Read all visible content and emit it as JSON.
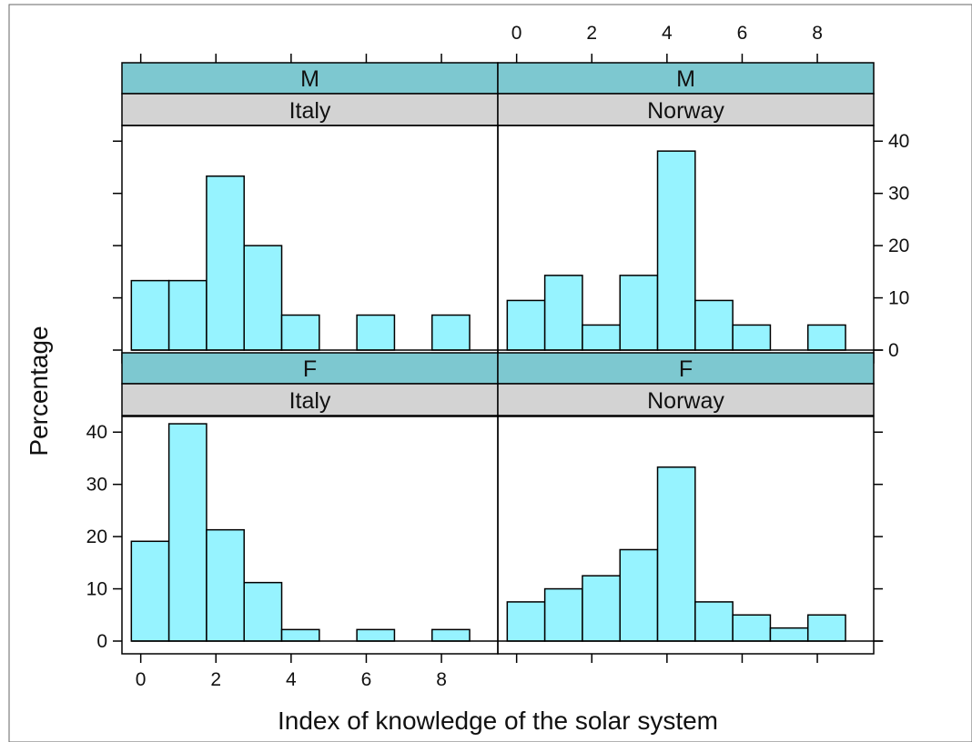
{
  "chart_data": {
    "type": "bar",
    "kind": "histogram-lattice",
    "xlabel": "Index of knowledge of the solar system",
    "ylabel": "Percentage",
    "xlim": [
      -0.5,
      9.5
    ],
    "ylim": [
      0,
      43
    ],
    "xticks": [
      0,
      2,
      4,
      6,
      8
    ],
    "yticks": [
      0,
      10,
      20,
      30,
      40
    ],
    "bin_edges": [
      -0.25,
      0.75,
      1.75,
      2.75,
      3.75,
      4.75,
      5.75,
      6.75,
      7.75,
      8.75
    ],
    "bin_width": 1.0,
    "colors": {
      "bar": "#96F3FF",
      "strip_outer": "#7DC8D0",
      "strip_inner": "#D3D3D3"
    },
    "grid": false,
    "panels": [
      {
        "outer": "M",
        "inner": "Italy",
        "values": [
          13.3,
          13.3,
          33.3,
          20.0,
          6.7,
          0,
          6.7,
          0,
          6.7
        ]
      },
      {
        "outer": "M",
        "inner": "Norway",
        "values": [
          9.5,
          14.3,
          4.8,
          14.3,
          38.1,
          9.5,
          4.8,
          0,
          4.8
        ]
      },
      {
        "outer": "F",
        "inner": "Italy",
        "values": [
          19.1,
          41.6,
          21.3,
          11.2,
          2.2,
          0,
          2.2,
          0,
          2.2
        ]
      },
      {
        "outer": "F",
        "inner": "Norway",
        "values": [
          7.5,
          10.0,
          12.5,
          17.5,
          33.3,
          7.5,
          5.0,
          2.5,
          5.0
        ]
      }
    ]
  }
}
